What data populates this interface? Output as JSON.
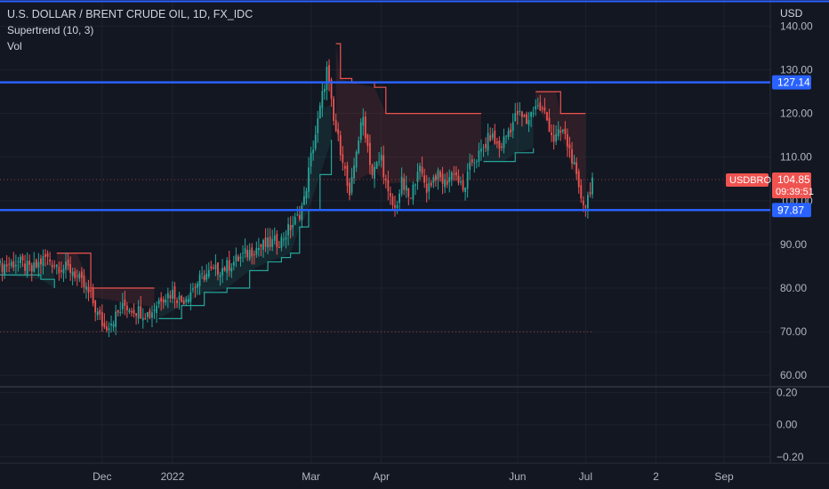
{
  "legend": {
    "title": "U.S. DOLLAR / BRENT CRUDE OIL, 1D, FX_IDC",
    "indicator": "Supertrend (10, 3)",
    "volume": "Vol"
  },
  "chart_data": {
    "type": "candlestick",
    "symbol": "USDBRO",
    "currency": "USD",
    "last_price": 104.85,
    "countdown": "09:39:51",
    "horizontal_lines": [
      127.14,
      97.87
    ],
    "price_axis": {
      "ticks": [
        60,
        70,
        80,
        90,
        100,
        110,
        120,
        130,
        140
      ],
      "tick_labels": [
        "60.00",
        "70.00",
        "80.00",
        "90.00",
        "100.00",
        "110.00",
        "120.00",
        "130.00",
        "140.00"
      ],
      "range": [
        58,
        146
      ]
    },
    "oscillator_axis": {
      "ticks": [
        -0.2,
        0,
        0.2
      ],
      "tick_labels": [
        "−0.20",
        "0.00",
        "0.20"
      ],
      "range": [
        -0.24,
        0.22
      ]
    },
    "time_labels": [
      "Dec",
      "2022",
      "Mar",
      "Apr",
      "Jun",
      "Jul",
      "2",
      "Sep"
    ],
    "close_path": [
      [
        0,
        85
      ],
      [
        8,
        86
      ],
      [
        14,
        84
      ],
      [
        20,
        87
      ],
      [
        26,
        85
      ],
      [
        32,
        84
      ],
      [
        40,
        78
      ],
      [
        43,
        74
      ],
      [
        46,
        71
      ],
      [
        50,
        73
      ],
      [
        55,
        76
      ],
      [
        60,
        75
      ],
      [
        66,
        74
      ],
      [
        71,
        78
      ],
      [
        76,
        79
      ],
      [
        80,
        77
      ],
      [
        85,
        80
      ],
      [
        90,
        83
      ],
      [
        95,
        84
      ],
      [
        100,
        85
      ],
      [
        106,
        87
      ],
      [
        112,
        89
      ],
      [
        118,
        90
      ],
      [
        124,
        91
      ],
      [
        128,
        94
      ],
      [
        131,
        96
      ],
      [
        134,
        100
      ],
      [
        137,
        110
      ],
      [
        140,
        118
      ],
      [
        142,
        124
      ],
      [
        144,
        130
      ],
      [
        147,
        118
      ],
      [
        151,
        110
      ],
      [
        154,
        100
      ],
      [
        157,
        112
      ],
      [
        160,
        119
      ],
      [
        164,
        106
      ],
      [
        168,
        110
      ],
      [
        171,
        101
      ],
      [
        174,
        98
      ],
      [
        177,
        104
      ],
      [
        181,
        100
      ],
      [
        184,
        108
      ],
      [
        188,
        103
      ],
      [
        192,
        106
      ],
      [
        196,
        104
      ],
      [
        200,
        107
      ],
      [
        204,
        102
      ],
      [
        208,
        109
      ],
      [
        212,
        111
      ],
      [
        216,
        115
      ],
      [
        220,
        112
      ],
      [
        224,
        116
      ],
      [
        228,
        120
      ],
      [
        232,
        118
      ],
      [
        236,
        122
      ],
      [
        240,
        120
      ],
      [
        244,
        114
      ],
      [
        248,
        116
      ],
      [
        252,
        110
      ],
      [
        255,
        102
      ],
      [
        258,
        99
      ],
      [
        261,
        105
      ]
    ],
    "supertrend": [
      {
        "trend": "up",
        "points": [
          [
            0,
            83
          ],
          [
            18,
            82
          ],
          [
            24,
            80
          ]
        ]
      },
      {
        "trend": "down",
        "points": [
          [
            25,
            88
          ],
          [
            34,
            88
          ],
          [
            40,
            80
          ],
          [
            68,
            80
          ]
        ]
      },
      {
        "trend": "up",
        "points": [
          [
            70,
            73
          ],
          [
            80,
            76
          ],
          [
            90,
            79
          ],
          [
            100,
            80
          ],
          [
            110,
            84
          ],
          [
            118,
            86
          ],
          [
            124,
            87
          ],
          [
            128,
            88
          ],
          [
            132,
            94
          ],
          [
            136,
            98
          ],
          [
            141,
            106
          ],
          [
            146,
            114
          ]
        ]
      },
      {
        "trend": "down",
        "points": [
          [
            148,
            136
          ],
          [
            150,
            128
          ],
          [
            155,
            127
          ],
          [
            165,
            126
          ],
          [
            170,
            120
          ],
          [
            202,
            120
          ],
          [
            210,
            120
          ],
          [
            212,
            120
          ]
        ]
      },
      {
        "trend": "up",
        "points": [
          [
            213,
            109
          ],
          [
            222,
            109
          ],
          [
            227,
            111
          ],
          [
            235,
            112
          ]
        ]
      },
      {
        "trend": "down",
        "points": [
          [
            236,
            125
          ],
          [
            245,
            125
          ],
          [
            247,
            120
          ],
          [
            258,
            120
          ]
        ]
      }
    ],
    "dotted_levels": [
      {
        "price": 104.85,
        "color": "#ef5350"
      },
      {
        "price": 70,
        "color": "#ef5350"
      }
    ],
    "colors": {
      "up": "#26a69a",
      "down": "#ef5350",
      "hline": "#2962ff",
      "background": "#131722"
    }
  }
}
